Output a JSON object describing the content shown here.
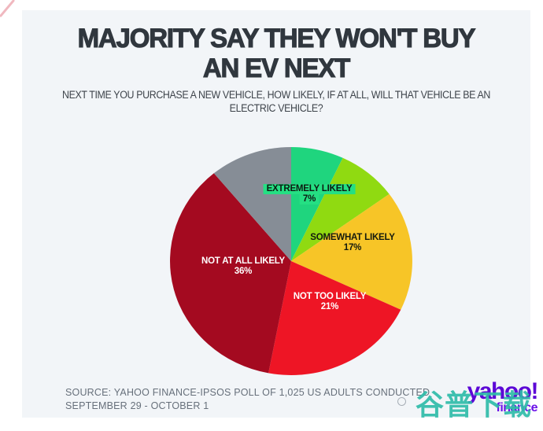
{
  "page": {
    "title": "MAJORITY SAY THEY WON'T BUY AN EV NEXT",
    "subtitle": "NEXT TIME YOU PURCHASE A NEW VEHICLE, HOW LIKELY, IF AT ALL, WILL THAT VEHICLE BE AN ELECTRIC VEHICLE?",
    "source_line1": "SOURCE: YAHOO FINANCE-IPSOS POLL OF 1,025 US ADULTS CONDUCTED",
    "source_line2": "SEPTEMBER 29 - OCTOBER 1",
    "background": "#ffffff",
    "card_background": "#F2F5F8"
  },
  "branding": {
    "logo_text": "yahoo!",
    "logo_sub": "finance",
    "logo_color": "#5C08D6",
    "logo_sub_color": "#6B11E8",
    "watermark_text": "谷普下载",
    "watermark_color": "#2FBCA9"
  },
  "chart_data": {
    "type": "pie",
    "title": "MAJORITY SAY THEY WON'T BUY AN EV NEXT",
    "question": "NEXT TIME YOU PURCHASE A NEW VEHICLE, HOW LIKELY, IF AT ALL, WILL THAT VEHICLE BE AN ELECTRIC VEHICLE?",
    "start_angle_deg": 0,
    "direction": "clockwise",
    "legend": "labels-on-slices",
    "label_highlight": "#25DF83",
    "segments": [
      {
        "label": "EXTREMELY LIKELY",
        "pct_label": "7%",
        "value": 7,
        "color": "#1FD57E",
        "labeled": true
      },
      {
        "label": "",
        "value": 8,
        "color": "#90DA11",
        "labeled": false
      },
      {
        "label": "SOMEWHAT LIKELY",
        "pct_label": "17%",
        "value": 17,
        "color": "#F7C527",
        "labeled": true
      },
      {
        "label": "NOT TOO LIKELY",
        "pct_label": "21%",
        "value": 21,
        "color": "#EE1525",
        "labeled": true
      },
      {
        "label": "NOT AT ALL LIKELY",
        "pct_label": "36%",
        "value": 36,
        "color": "#A40A20",
        "labeled": true
      },
      {
        "label": "",
        "value": 11,
        "color": "#868D96",
        "labeled": false
      }
    ]
  }
}
